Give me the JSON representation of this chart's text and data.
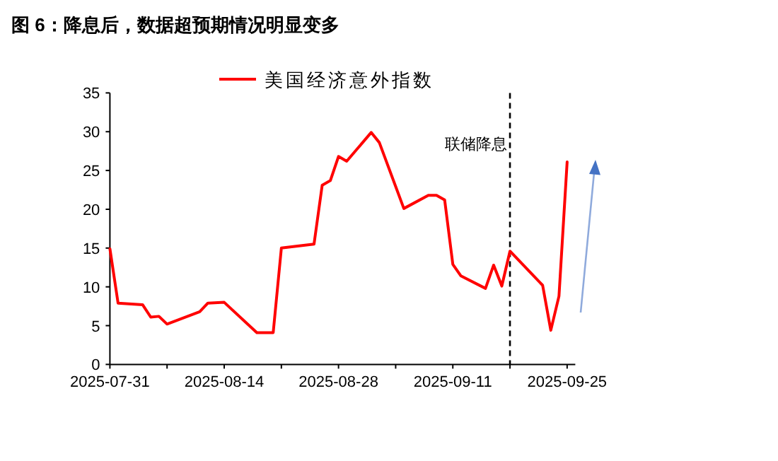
{
  "chart_data": {
    "type": "line",
    "title": "图 6：降息后，数据超预期情况明显变多",
    "x": [
      "2025-07-31",
      "2025-08-01",
      "2025-08-04",
      "2025-08-05",
      "2025-08-06",
      "2025-08-07",
      "2025-08-11",
      "2025-08-12",
      "2025-08-14",
      "2025-08-18",
      "2025-08-20",
      "2025-08-21",
      "2025-08-25",
      "2025-08-26",
      "2025-08-27",
      "2025-08-28",
      "2025-08-29",
      "2025-09-01",
      "2025-09-02",
      "2025-09-05",
      "2025-09-08",
      "2025-09-09",
      "2025-09-10",
      "2025-09-11",
      "2025-09-12",
      "2025-09-15",
      "2025-09-16",
      "2025-09-17",
      "2025-09-18",
      "2025-09-22",
      "2025-09-23",
      "2025-09-24",
      "2025-09-25"
    ],
    "series": [
      {
        "name": "美国经济意外指数",
        "color": "#ff0000",
        "values": [
          14.9,
          7.9,
          7.7,
          6.1,
          6.2,
          5.2,
          6.8,
          7.9,
          8.0,
          4.1,
          4.1,
          15.0,
          15.5,
          23.1,
          23.7,
          26.8,
          26.2,
          29.9,
          28.6,
          20.1,
          21.8,
          21.8,
          21.2,
          12.9,
          11.4,
          9.8,
          12.8,
          10.1,
          14.6,
          10.2,
          4.4,
          8.8,
          26.1
        ]
      }
    ],
    "xlim": [
      "2025-07-31",
      "2025-09-26"
    ],
    "xticks": [
      {
        "value": "2025-07-31",
        "label": "2025-07-31"
      },
      {
        "value": "2025-08-07",
        "label": null
      },
      {
        "value": "2025-08-14",
        "label": "2025-08-14"
      },
      {
        "value": "2025-08-21",
        "label": null
      },
      {
        "value": "2025-08-28",
        "label": "2025-08-28"
      },
      {
        "value": "2025-09-04",
        "label": null
      },
      {
        "value": "2025-09-11",
        "label": "2025-09-11"
      },
      {
        "value": "2025-09-18",
        "label": null
      },
      {
        "value": "2025-09-25",
        "label": "2025-09-25"
      }
    ],
    "ylim": [
      0,
      35
    ],
    "yticks": [
      0,
      5,
      10,
      15,
      20,
      25,
      30,
      35
    ],
    "ref_lines": [
      {
        "axis": "x",
        "value": "2025-09-18",
        "label": "联储降息",
        "color": "#000000",
        "line_style": "dashed"
      }
    ],
    "legend": "top",
    "grid": false,
    "marker": "none",
    "line_style": "solid"
  }
}
